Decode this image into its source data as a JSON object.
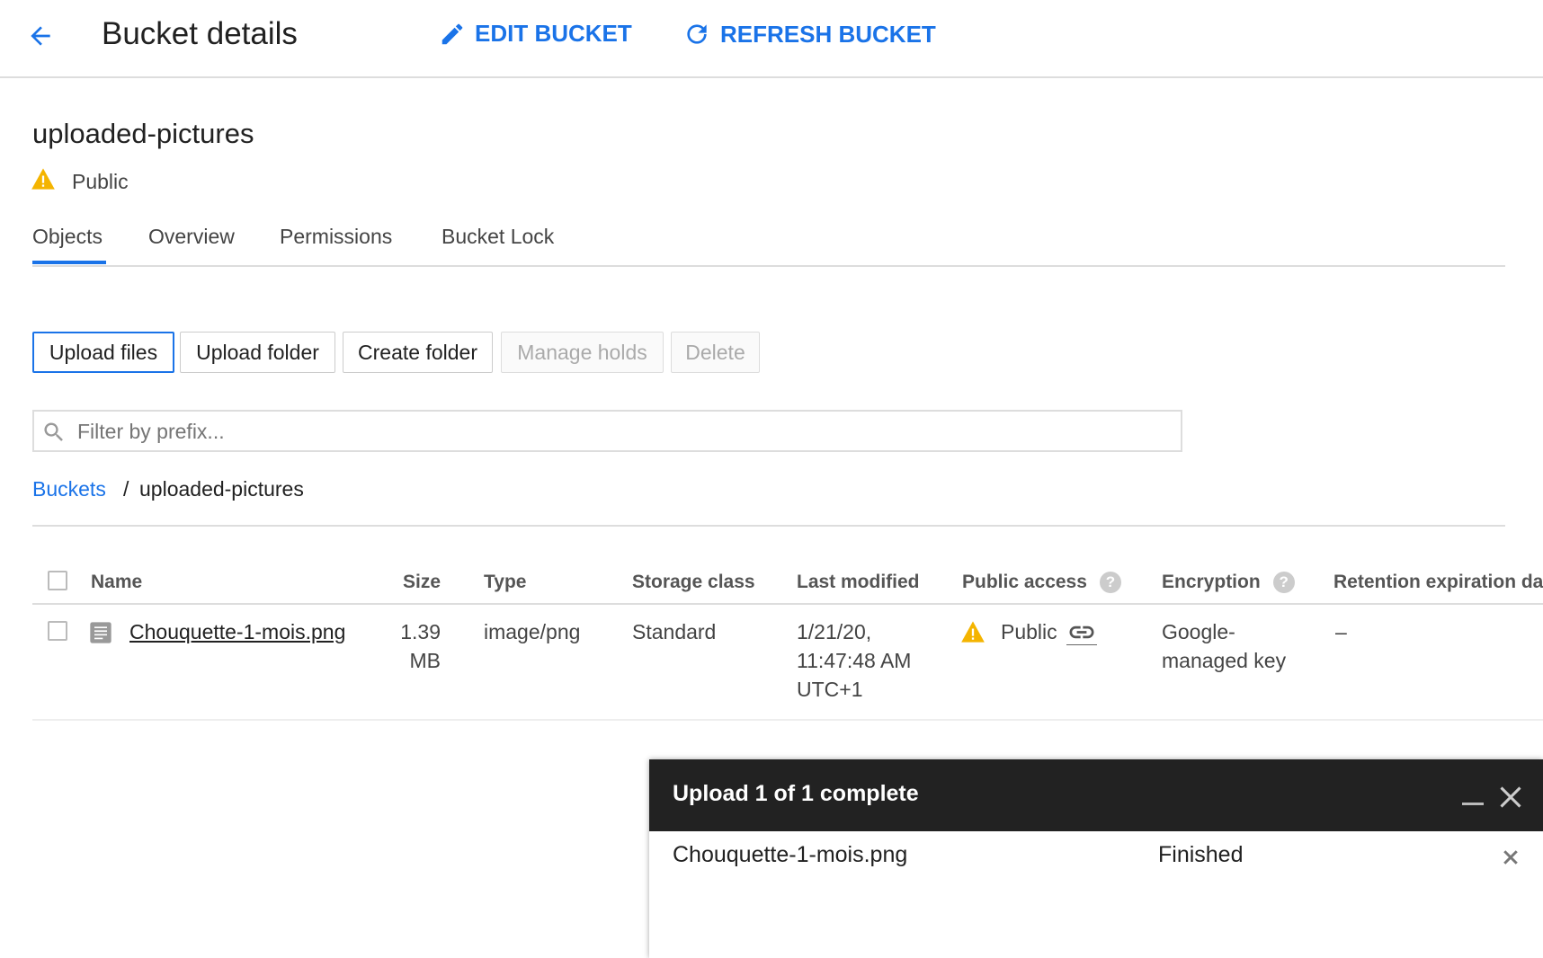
{
  "header": {
    "title": "Bucket details",
    "edit_label": "EDIT BUCKET",
    "refresh_label": "REFRESH BUCKET"
  },
  "bucket": {
    "name": "uploaded-pictures",
    "visibility": "Public"
  },
  "tabs": [
    {
      "label": "Objects",
      "active": true
    },
    {
      "label": "Overview"
    },
    {
      "label": "Permissions"
    },
    {
      "label": "Bucket Lock"
    }
  ],
  "toolbar": {
    "upload_files": "Upload files",
    "upload_folder": "Upload folder",
    "create_folder": "Create folder",
    "manage_holds": "Manage holds",
    "delete": "Delete"
  },
  "filter": {
    "placeholder": "Filter by prefix..."
  },
  "breadcrumb": {
    "root": "Buckets",
    "separator": "/",
    "current": "uploaded-pictures"
  },
  "table": {
    "columns": [
      "Name",
      "Size",
      "Type",
      "Storage class",
      "Last modified",
      "Public access",
      "Encryption",
      "Retention expiration dat"
    ],
    "rows": [
      {
        "name": "Chouquette-1-mois.png",
        "size_line1": "1.39",
        "size_line2": "MB",
        "type": "image/png",
        "storage_class": "Standard",
        "modified_line1": "1/21/20,",
        "modified_line2": "11:47:48 AM",
        "modified_line3": "UTC+1",
        "public_access": "Public",
        "encryption_line1": "Google-",
        "encryption_line2": "managed key",
        "retention": "–"
      }
    ]
  },
  "upload_panel": {
    "title": "Upload 1 of 1 complete",
    "file": "Chouquette-1-mois.png",
    "status": "Finished"
  },
  "colors": {
    "accent": "#1a73e8",
    "warning": "#f4b400",
    "panel_header": "#222222"
  }
}
